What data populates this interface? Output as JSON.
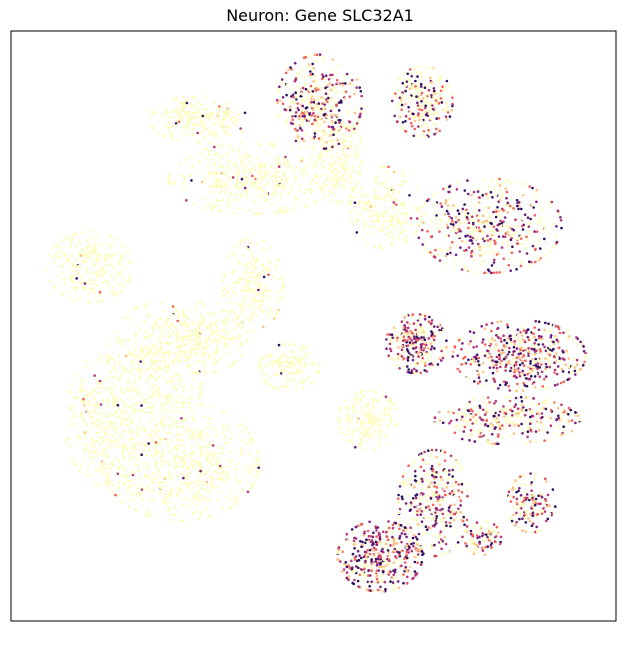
{
  "chart_data": {
    "type": "scatter",
    "title": "Neuron: Gene SLC32A1",
    "xlabel": "",
    "ylabel": "",
    "axis_ticks": "none",
    "grid": false,
    "legend": "none",
    "colormap": [
      "#fcfdbf",
      "#fec287",
      "#f1605d",
      "#b63679",
      "#721f81",
      "#2d1160"
    ],
    "background_color": "#fcfdbf",
    "clusters": [
      {
        "cx": 40,
        "cy": 25,
        "rx": 14,
        "ry": 6,
        "expr": 0.03,
        "n": 360
      },
      {
        "cx": 31,
        "cy": 15,
        "rx": 8,
        "ry": 4,
        "expr": 0.03,
        "n": 200
      },
      {
        "cx": 13,
        "cy": 40,
        "rx": 7,
        "ry": 6,
        "expr": 0.02,
        "n": 220
      },
      {
        "cx": 24,
        "cy": 57,
        "rx": 8,
        "ry": 11,
        "expr": 0.03,
        "n": 360
      },
      {
        "cx": 32,
        "cy": 52,
        "rx": 7,
        "ry": 6,
        "expr": 0.02,
        "n": 220
      },
      {
        "cx": 28,
        "cy": 73,
        "rx": 13,
        "ry": 10,
        "expr": 0.03,
        "n": 560
      },
      {
        "cx": 15,
        "cy": 66,
        "rx": 6,
        "ry": 11,
        "expr": 0.02,
        "n": 260
      },
      {
        "cx": 40,
        "cy": 43,
        "rx": 5,
        "ry": 8,
        "expr": 0.02,
        "n": 200
      },
      {
        "cx": 46,
        "cy": 57,
        "rx": 5,
        "ry": 4,
        "expr": 0.02,
        "n": 130
      },
      {
        "cx": 59,
        "cy": 66,
        "rx": 5,
        "ry": 5,
        "expr": 0.02,
        "n": 170
      },
      {
        "cx": 54,
        "cy": 21,
        "rx": 4,
        "ry": 8,
        "expr": 0.02,
        "n": 170
      },
      {
        "cx": 62,
        "cy": 30,
        "rx": 6,
        "ry": 7,
        "expr": 0.04,
        "n": 200
      },
      {
        "cx": 68,
        "cy": 12,
        "rx": 5,
        "ry": 6,
        "expr": 0.45,
        "n": 260
      },
      {
        "cx": 51,
        "cy": 12,
        "rx": 7,
        "ry": 8,
        "expr": 0.55,
        "n": 360
      },
      {
        "cx": 79,
        "cy": 33,
        "rx": 12,
        "ry": 8,
        "expr": 0.5,
        "n": 460
      },
      {
        "cx": 67,
        "cy": 53,
        "rx": 5,
        "ry": 5,
        "expr": 0.6,
        "n": 270
      },
      {
        "cx": 84,
        "cy": 55,
        "rx": 11,
        "ry": 6,
        "expr": 0.75,
        "n": 460
      },
      {
        "cx": 82,
        "cy": 66,
        "rx": 12,
        "ry": 4,
        "expr": 0.6,
        "n": 300
      },
      {
        "cx": 70,
        "cy": 80,
        "rx": 6,
        "ry": 9,
        "expr": 0.55,
        "n": 360
      },
      {
        "cx": 61,
        "cy": 89,
        "rx": 7,
        "ry": 6,
        "expr": 0.75,
        "n": 400
      },
      {
        "cx": 86,
        "cy": 80,
        "rx": 4,
        "ry": 5,
        "expr": 0.6,
        "n": 150
      },
      {
        "cx": 78,
        "cy": 86,
        "rx": 3,
        "ry": 3,
        "expr": 0.6,
        "n": 90
      }
    ]
  }
}
